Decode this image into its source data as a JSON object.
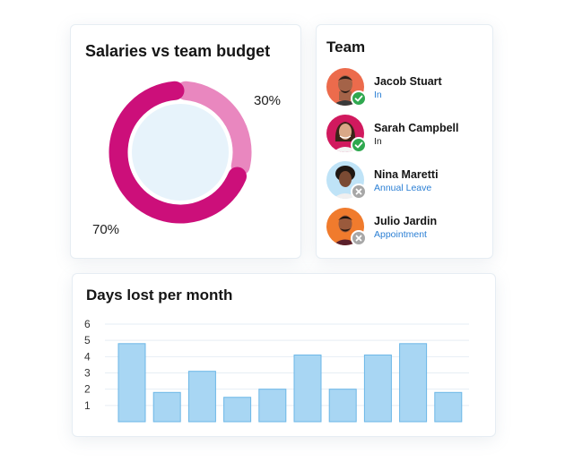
{
  "salaries_card": {
    "title": "Salaries vs team budget",
    "small_label": "30%",
    "large_label": "70%"
  },
  "team_card": {
    "title": "Team",
    "members": [
      {
        "name": "Jacob Stuart",
        "status": "In",
        "status_color": "#2b7fd4",
        "badge": "check-icon"
      },
      {
        "name": "Sarah Campbell",
        "status": "In",
        "status_color": "#222222",
        "badge": "check-icon"
      },
      {
        "name": "Nina Maretti",
        "status": "Annual Leave",
        "status_color": "#2b7fd4",
        "badge": "cross-icon"
      },
      {
        "name": "Julio Jardin",
        "status": "Appointment",
        "status_color": "#2b7fd4",
        "badge": "cross-icon"
      }
    ]
  },
  "days_card": {
    "title": "Days lost per month"
  },
  "colors": {
    "donut_large": "#cc0f7a",
    "donut_small": "#e987bf",
    "donut_center": "#e7f3fb",
    "bar_fill": "#a8d6f3",
    "bar_stroke": "#6cb7e7",
    "grid": "#e6eef4",
    "status_ok": "#2fa84f",
    "status_off": "#a7a7a7"
  },
  "chart_data": [
    {
      "type": "pie",
      "title": "Salaries vs team budget",
      "values": [
        70,
        30
      ],
      "labels": [
        "70%",
        "30%"
      ]
    },
    {
      "type": "bar",
      "title": "Days lost per month",
      "xlabel": "",
      "ylabel": "",
      "ylim": [
        0,
        6
      ],
      "yticks": [
        1,
        2,
        3,
        4,
        5,
        6
      ],
      "grid": true,
      "values": [
        4.8,
        1.8,
        3.1,
        1.5,
        2.0,
        4.1,
        2.0,
        4.1,
        4.8,
        1.8
      ]
    }
  ]
}
